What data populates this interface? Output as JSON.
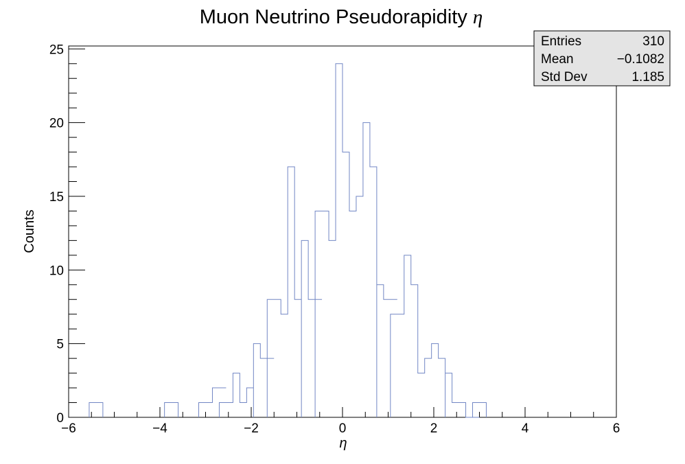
{
  "chart_data": {
    "type": "histogram",
    "title": "Muon Neutrino Pseudorapidity",
    "title_symbol": "η",
    "xlabel": "η",
    "ylabel": "Counts",
    "xlim": [
      -6,
      6
    ],
    "ylim": [
      0,
      25.2
    ],
    "bin_width": 0.3,
    "x_ticks": [
      -6,
      -4,
      -2,
      0,
      2,
      4,
      6
    ],
    "x_tick_labels": [
      "−6",
      "−4",
      "−2",
      "0",
      "2",
      "4",
      "6"
    ],
    "y_ticks": [
      0,
      5,
      10,
      15,
      20,
      25
    ],
    "y_tick_labels": [
      "0",
      "5",
      "10",
      "15",
      "20",
      "25"
    ],
    "line_color": "#7186c4",
    "bins": [
      {
        "x": -5.55,
        "count": 1
      },
      {
        "x": -3.9,
        "count": 1
      },
      {
        "x": -3.15,
        "count": 1
      },
      {
        "x": -2.85,
        "count": 2
      },
      {
        "x": -2.7,
        "count": 1
      },
      {
        "x": -2.55,
        "count": 3
      },
      {
        "x": -2.4,
        "count": 1
      },
      {
        "x": -2.25,
        "count": 2
      },
      {
        "x": -2.1,
        "count": 5
      },
      {
        "x": -1.8,
        "count": 4
      },
      {
        "x": -1.65,
        "count": 8
      },
      {
        "x": -1.5,
        "count": 7
      },
      {
        "x": -1.35,
        "count": 17
      },
      {
        "x": -1.2,
        "count": 8
      },
      {
        "x": -1.05,
        "count": 12
      },
      {
        "x": -0.75,
        "count": 8
      },
      {
        "x": -0.6,
        "count": 14
      },
      {
        "x": -0.45,
        "count": 12
      },
      {
        "x": -0.3,
        "count": 24
      },
      {
        "x": -0.15,
        "count": 18
      },
      {
        "x": 0.0,
        "count": 14
      },
      {
        "x": 0.15,
        "count": 15
      },
      {
        "x": 0.3,
        "count": 20
      },
      {
        "x": 0.45,
        "count": 17
      },
      {
        "x": 0.6,
        "count": 9
      },
      {
        "x": 0.9,
        "count": 8
      },
      {
        "x": 1.05,
        "count": 7
      },
      {
        "x": 1.2,
        "count": 11
      },
      {
        "x": 1.35,
        "count": 9
      },
      {
        "x": 1.5,
        "count": 3
      },
      {
        "x": 1.65,
        "count": 4
      },
      {
        "x": 1.8,
        "count": 5
      },
      {
        "x": 1.95,
        "count": 4
      },
      {
        "x": 2.1,
        "count": 3
      },
      {
        "x": 2.4,
        "count": 1
      },
      {
        "x": 2.7,
        "count": 0
      },
      {
        "x": 2.85,
        "count": 1
      }
    ],
    "stats": {
      "rows": [
        {
          "label": "Entries",
          "value": "310"
        },
        {
          "label": "Mean",
          "value": "−0.1082"
        },
        {
          "label": "Std Dev",
          "value": "1.185"
        }
      ],
      "fill_color": "#e4e4e4"
    }
  }
}
